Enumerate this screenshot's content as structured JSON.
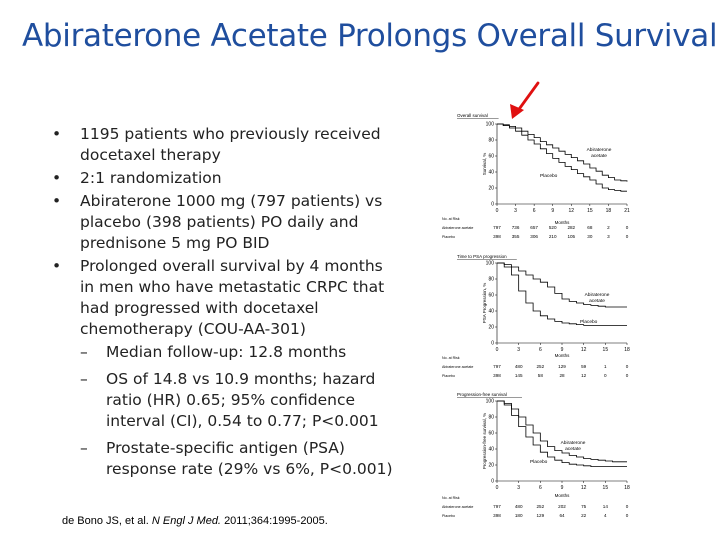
{
  "title": "Abiraterone Acetate Prolongs Overall Survival",
  "bullets": [
    {
      "text": "1195 patients who previously received docetaxel therapy"
    },
    {
      "text": "2:1 randomization"
    },
    {
      "text": "Abiraterone 1000 mg (797 patients) vs placebo (398 patients) PO daily and prednisone 5 mg PO BID"
    },
    {
      "text": "Prolonged overall survival by 4 months in men who have metastatic CRPC that had progressed with docetaxel chemotherapy (COU-AA-301)"
    }
  ],
  "sub_bullets": [
    {
      "text": "Median follow-up: 12.8 months"
    },
    {
      "text": "OS of 14.8 vs 10.9 months; hazard ratio (HR) 0.65; 95% confidence interval (CI), 0.54 to 0.77; P<0.001"
    },
    {
      "text": "Prostate-specific antigen (PSA) response rate (29% vs 6%, P<0.001)"
    }
  ],
  "citation": {
    "authors": "de Bono JS, et al.",
    "journal": "N Engl J Med.",
    "ref": "2011;364:1995-2005."
  },
  "accent": "#1f4e9e",
  "arrow_color": "#e01010",
  "chart_data": [
    {
      "type": "line",
      "title": "Overall survival",
      "ylabel": "Survival, %",
      "xlabel": "Months",
      "ylim": [
        0,
        100
      ],
      "yticks": [
        "0",
        "20",
        "40",
        "60",
        "80",
        "100"
      ],
      "xticks": [
        "0",
        "3",
        "6",
        "9",
        "12",
        "15",
        "18",
        "21"
      ],
      "xmax": 21,
      "series": [
        {
          "name": "Abiraterone acetate",
          "x": [
            0,
            1,
            2,
            3,
            4,
            5,
            6,
            7,
            8,
            9,
            10,
            11,
            12,
            13,
            14,
            15,
            16,
            17,
            18,
            19,
            20,
            21
          ],
          "y": [
            100,
            99,
            97,
            95,
            91,
            87,
            83,
            78,
            74,
            70,
            66,
            62,
            58,
            54,
            50,
            45,
            41,
            36,
            33,
            30,
            29,
            28
          ]
        },
        {
          "name": "Placebo",
          "x": [
            0,
            1,
            2,
            3,
            4,
            5,
            6,
            7,
            8,
            9,
            10,
            11,
            12,
            13,
            14,
            15,
            16,
            17,
            18,
            19,
            20,
            21
          ],
          "y": [
            100,
            98,
            95,
            91,
            86,
            80,
            75,
            69,
            63,
            57,
            52,
            47,
            43,
            38,
            34,
            30,
            25,
            20,
            18,
            17,
            16,
            16
          ]
        }
      ],
      "labels": {
        "abi": "Abiraterone acetate",
        "placebo": "Placebo"
      },
      "risk": {
        "heading": "No. at Risk",
        "abi_label": "Abiraterone acetate",
        "placebo_label": "Placebo",
        "abi": [
          "797",
          "736",
          "657",
          "520",
          "282",
          "68",
          "2",
          "0"
        ],
        "placebo": [
          "398",
          "355",
          "306",
          "210",
          "105",
          "30",
          "3",
          "0"
        ]
      }
    },
    {
      "type": "line",
      "title": "Time to PSA progression",
      "ylabel": "PSA Progression, %",
      "xlabel": "Months",
      "ylim": [
        0,
        100
      ],
      "yticks": [
        "0",
        "20",
        "40",
        "60",
        "80",
        "100"
      ],
      "xticks": [
        "0",
        "3",
        "6",
        "9",
        "12",
        "15",
        "18"
      ],
      "xmax": 18,
      "series": [
        {
          "name": "Abiraterone acetate",
          "x": [
            0,
            1,
            2,
            3,
            4,
            5,
            6,
            7,
            8,
            9,
            10,
            11,
            12,
            13,
            14,
            15,
            16,
            17,
            18
          ],
          "y": [
            100,
            98,
            95,
            90,
            85,
            80,
            76,
            70,
            62,
            55,
            52,
            50,
            48,
            47,
            46,
            45,
            45,
            45,
            45
          ]
        },
        {
          "name": "Placebo",
          "x": [
            0,
            1,
            2,
            3,
            4,
            5,
            6,
            7,
            8,
            9,
            10,
            11,
            12,
            13,
            14,
            15,
            16,
            17,
            18
          ],
          "y": [
            100,
            95,
            85,
            65,
            50,
            40,
            34,
            30,
            27,
            25,
            24,
            23,
            22,
            22,
            22,
            22,
            22,
            22,
            22
          ]
        }
      ],
      "labels": {
        "abi": "Abiraterone acetate",
        "placebo": "Placebo"
      },
      "risk": {
        "heading": "No. at Risk",
        "abi_label": "Abiraterone acetate",
        "placebo_label": "Placebo",
        "abi": [
          "797",
          "480",
          "252",
          "129",
          "59",
          "1",
          "0"
        ],
        "placebo": [
          "398",
          "145",
          "58",
          "28",
          "12",
          "0",
          "0"
        ]
      }
    },
    {
      "type": "line",
      "title": "Progression-free survival",
      "ylabel": "Progression-free survival, %",
      "xlabel": "Months",
      "ylim": [
        0,
        100
      ],
      "yticks": [
        "0",
        "20",
        "40",
        "60",
        "80",
        "100"
      ],
      "xticks": [
        "0",
        "3",
        "6",
        "9",
        "12",
        "15",
        "18"
      ],
      "xmax": 18,
      "series": [
        {
          "name": "Abiraterone acetate",
          "x": [
            0,
            1,
            2,
            3,
            4,
            5,
            6,
            7,
            8,
            9,
            10,
            11,
            12,
            13,
            14,
            15,
            16,
            17,
            18
          ],
          "y": [
            100,
            97,
            90,
            80,
            70,
            60,
            50,
            43,
            38,
            35,
            32,
            30,
            28,
            27,
            26,
            25,
            24,
            24,
            24
          ]
        },
        {
          "name": "Placebo",
          "x": [
            0,
            1,
            2,
            3,
            4,
            5,
            6,
            7,
            8,
            9,
            10,
            11,
            12,
            13,
            14,
            15,
            16,
            17,
            18
          ],
          "y": [
            100,
            95,
            82,
            68,
            55,
            45,
            36,
            30,
            26,
            23,
            21,
            20,
            19,
            18,
            18,
            18,
            18,
            18,
            18
          ]
        }
      ],
      "labels": {
        "abi": "Abiraterone acetate",
        "placebo": "Placebo"
      },
      "risk": {
        "heading": "No. at Risk",
        "abi_label": "Abiraterone acetate",
        "placebo_label": "Placebo",
        "abi": [
          "797",
          "480",
          "252",
          "202",
          "75",
          "14",
          "0"
        ],
        "placebo": [
          "398",
          "180",
          "129",
          "64",
          "22",
          "4",
          "0"
        ]
      }
    }
  ]
}
